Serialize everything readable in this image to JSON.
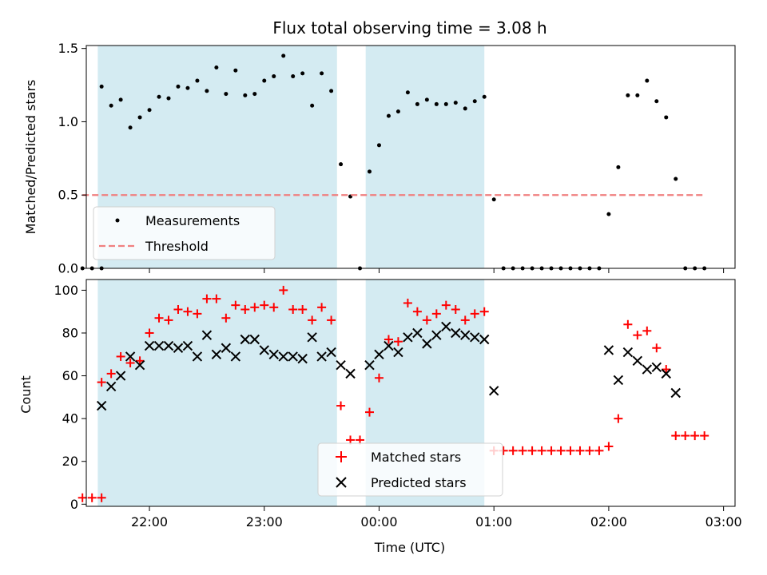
{
  "chart_data": [
    {
      "type": "scatter",
      "title": "Flux total observing time = 3.08 h",
      "xlabel": "",
      "ylabel": "Matched/Predicted stars",
      "ylim": [
        0,
        1.52
      ],
      "yticks": [
        "0.0",
        "0.5",
        "1.0",
        "1.5"
      ],
      "xticks": [
        "22:00",
        "23:00",
        "00:00",
        "01:00",
        "02:00",
        "03:00"
      ],
      "x_range_hours_utc": [
        "21:27",
        "03:06"
      ],
      "shaded_spans_hours": [
        [
          "21:33",
          "23:38"
        ],
        [
          "23:53",
          "00:55"
        ]
      ],
      "shade_color": "#add8e6",
      "legend_position": "lower-left",
      "series": [
        {
          "name": "Measurements",
          "marker": "dot",
          "color": "#000000",
          "points": [
            [
              "21:25",
              0.0
            ],
            [
              "21:30",
              0.0
            ],
            [
              "21:35",
              0.0
            ],
            [
              "21:35",
              1.24
            ],
            [
              "21:40",
              1.11
            ],
            [
              "21:45",
              1.15
            ],
            [
              "21:50",
              0.96
            ],
            [
              "21:55",
              1.03
            ],
            [
              "22:00",
              1.08
            ],
            [
              "22:05",
              1.17
            ],
            [
              "22:10",
              1.16
            ],
            [
              "22:15",
              1.24
            ],
            [
              "22:20",
              1.23
            ],
            [
              "22:25",
              1.28
            ],
            [
              "22:30",
              1.21
            ],
            [
              "22:35",
              1.37
            ],
            [
              "22:40",
              1.19
            ],
            [
              "22:45",
              1.35
            ],
            [
              "22:50",
              1.18
            ],
            [
              "22:55",
              1.19
            ],
            [
              "23:00",
              1.28
            ],
            [
              "23:05",
              1.31
            ],
            [
              "23:10",
              1.45
            ],
            [
              "23:15",
              1.31
            ],
            [
              "23:20",
              1.33
            ],
            [
              "23:25",
              1.11
            ],
            [
              "23:30",
              1.33
            ],
            [
              "23:35",
              1.21
            ],
            [
              "23:40",
              0.71
            ],
            [
              "23:45",
              0.49
            ],
            [
              "23:50",
              0.0
            ],
            [
              "23:55",
              0.66
            ],
            [
              "00:00",
              0.84
            ],
            [
              "00:05",
              1.04
            ],
            [
              "00:10",
              1.07
            ],
            [
              "00:15",
              1.2
            ],
            [
              "00:20",
              1.12
            ],
            [
              "00:25",
              1.15
            ],
            [
              "00:30",
              1.12
            ],
            [
              "00:35",
              1.12
            ],
            [
              "00:40",
              1.13
            ],
            [
              "00:45",
              1.09
            ],
            [
              "00:50",
              1.14
            ],
            [
              "00:55",
              1.17
            ],
            [
              "01:00",
              0.47
            ],
            [
              "01:05",
              0.0
            ],
            [
              "01:10",
              0.0
            ],
            [
              "01:15",
              0.0
            ],
            [
              "01:20",
              0.0
            ],
            [
              "01:25",
              0.0
            ],
            [
              "01:30",
              0.0
            ],
            [
              "01:35",
              0.0
            ],
            [
              "01:40",
              0.0
            ],
            [
              "01:45",
              0.0
            ],
            [
              "01:50",
              0.0
            ],
            [
              "01:55",
              0.0
            ],
            [
              "02:00",
              0.37
            ],
            [
              "02:05",
              0.69
            ],
            [
              "02:10",
              1.18
            ],
            [
              "02:15",
              1.18
            ],
            [
              "02:20",
              1.28
            ],
            [
              "02:25",
              1.14
            ],
            [
              "02:30",
              1.03
            ],
            [
              "02:35",
              0.61
            ],
            [
              "02:40",
              0.0
            ],
            [
              "02:45",
              0.0
            ],
            [
              "02:50",
              0.0
            ]
          ]
        },
        {
          "name": "Threshold",
          "line": "dashed",
          "color": "#f08080",
          "points": [
            [
              "21:25",
              0.5
            ],
            [
              "02:50",
              0.5
            ]
          ]
        }
      ]
    },
    {
      "type": "scatter",
      "title": "",
      "xlabel": "Time (UTC)",
      "ylabel": "Count",
      "ylim": [
        -1,
        105
      ],
      "yticks": [
        "0",
        "20",
        "40",
        "60",
        "80",
        "100"
      ],
      "xticks": [
        "22:00",
        "23:00",
        "00:00",
        "01:00",
        "02:00",
        "03:00"
      ],
      "x_range_hours_utc": [
        "21:27",
        "03:06"
      ],
      "shaded_spans_hours": [
        [
          "21:33",
          "23:38"
        ],
        [
          "23:53",
          "00:55"
        ]
      ],
      "shade_color": "#add8e6",
      "legend_position": "lower-center",
      "series": [
        {
          "name": "Matched stars",
          "marker": "plus",
          "color": "#ff0000",
          "points": [
            [
              "21:25",
              3
            ],
            [
              "21:30",
              3
            ],
            [
              "21:35",
              3
            ],
            [
              "21:35",
              57
            ],
            [
              "21:40",
              61
            ],
            [
              "21:45",
              69
            ],
            [
              "21:50",
              66
            ],
            [
              "21:55",
              67
            ],
            [
              "22:00",
              80
            ],
            [
              "22:05",
              87
            ],
            [
              "22:10",
              86
            ],
            [
              "22:15",
              91
            ],
            [
              "22:20",
              90
            ],
            [
              "22:25",
              89
            ],
            [
              "22:30",
              96
            ],
            [
              "22:35",
              96
            ],
            [
              "22:40",
              87
            ],
            [
              "22:45",
              93
            ],
            [
              "22:50",
              91
            ],
            [
              "22:55",
              92
            ],
            [
              "23:00",
              93
            ],
            [
              "23:05",
              92
            ],
            [
              "23:10",
              100
            ],
            [
              "23:15",
              91
            ],
            [
              "23:20",
              91
            ],
            [
              "23:25",
              86
            ],
            [
              "23:30",
              92
            ],
            [
              "23:35",
              86
            ],
            [
              "23:40",
              46
            ],
            [
              "23:45",
              30
            ],
            [
              "23:50",
              30
            ],
            [
              "23:55",
              43
            ],
            [
              "00:00",
              59
            ],
            [
              "00:05",
              77
            ],
            [
              "00:10",
              76
            ],
            [
              "00:15",
              94
            ],
            [
              "00:20",
              90
            ],
            [
              "00:25",
              86
            ],
            [
              "00:30",
              89
            ],
            [
              "00:35",
              93
            ],
            [
              "00:40",
              91
            ],
            [
              "00:45",
              86
            ],
            [
              "00:50",
              89
            ],
            [
              "00:55",
              90
            ],
            [
              "01:00",
              25
            ],
            [
              "01:05",
              25
            ],
            [
              "01:10",
              25
            ],
            [
              "01:15",
              25
            ],
            [
              "01:20",
              25
            ],
            [
              "01:25",
              25
            ],
            [
              "01:30",
              25
            ],
            [
              "01:35",
              25
            ],
            [
              "01:40",
              25
            ],
            [
              "01:45",
              25
            ],
            [
              "01:50",
              25
            ],
            [
              "01:55",
              25
            ],
            [
              "02:00",
              27
            ],
            [
              "02:05",
              40
            ],
            [
              "02:10",
              84
            ],
            [
              "02:15",
              79
            ],
            [
              "02:20",
              81
            ],
            [
              "02:25",
              73
            ],
            [
              "02:30",
              63
            ],
            [
              "02:35",
              32
            ],
            [
              "02:40",
              32
            ],
            [
              "02:45",
              32
            ],
            [
              "02:50",
              32
            ]
          ]
        },
        {
          "name": "Predicted stars",
          "marker": "x",
          "color": "#000000",
          "points": [
            [
              "21:35",
              46
            ],
            [
              "21:40",
              55
            ],
            [
              "21:45",
              60
            ],
            [
              "21:50",
              69
            ],
            [
              "21:55",
              65
            ],
            [
              "22:00",
              74
            ],
            [
              "22:05",
              74
            ],
            [
              "22:10",
              74
            ],
            [
              "22:15",
              73
            ],
            [
              "22:20",
              74
            ],
            [
              "22:25",
              69
            ],
            [
              "22:30",
              79
            ],
            [
              "22:35",
              70
            ],
            [
              "22:40",
              73
            ],
            [
              "22:45",
              69
            ],
            [
              "22:50",
              77
            ],
            [
              "22:55",
              77
            ],
            [
              "23:00",
              72
            ],
            [
              "23:05",
              70
            ],
            [
              "23:10",
              69
            ],
            [
              "23:15",
              69
            ],
            [
              "23:20",
              68
            ],
            [
              "23:25",
              78
            ],
            [
              "23:30",
              69
            ],
            [
              "23:35",
              71
            ],
            [
              "23:40",
              65
            ],
            [
              "23:45",
              61
            ],
            [
              "23:55",
              65
            ],
            [
              "00:00",
              70
            ],
            [
              "00:05",
              74
            ],
            [
              "00:10",
              71
            ],
            [
              "00:15",
              78
            ],
            [
              "00:20",
              80
            ],
            [
              "00:25",
              75
            ],
            [
              "00:30",
              79
            ],
            [
              "00:35",
              83
            ],
            [
              "00:40",
              80
            ],
            [
              "00:45",
              79
            ],
            [
              "00:50",
              78
            ],
            [
              "00:55",
              77
            ],
            [
              "01:00",
              53
            ],
            [
              "02:00",
              72
            ],
            [
              "02:05",
              58
            ],
            [
              "02:10",
              71
            ],
            [
              "02:15",
              67
            ],
            [
              "02:20",
              63
            ],
            [
              "02:25",
              64
            ],
            [
              "02:30",
              61
            ],
            [
              "02:35",
              52
            ]
          ]
        }
      ]
    }
  ]
}
